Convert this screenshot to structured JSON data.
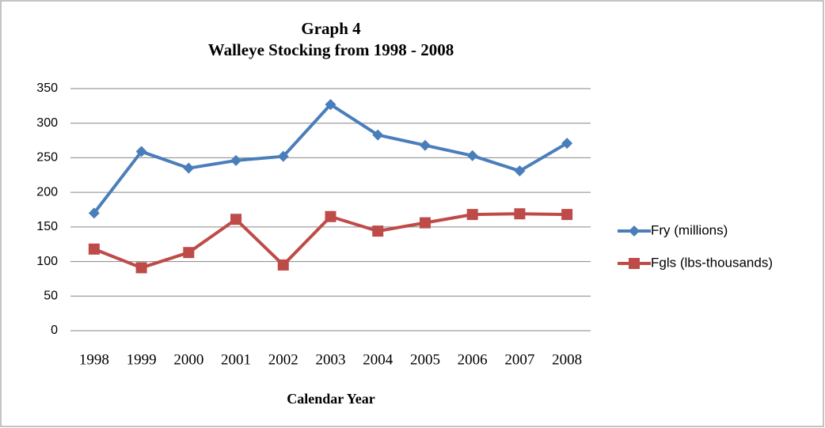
{
  "chart_data": {
    "type": "line",
    "title": "Graph 4",
    "subtitle": "Walleye Stocking from 1998 - 2008",
    "x_label": "Calendar Year",
    "categories": [
      "1998",
      "1999",
      "2000",
      "2001",
      "2002",
      "2003",
      "2004",
      "2005",
      "2006",
      "2007",
      "2008"
    ],
    "series": [
      {
        "name": "Fry (millions)",
        "color": "#4a7ebb",
        "marker": "diamond",
        "values": [
          170,
          259,
          235,
          246,
          252,
          327,
          283,
          268,
          253,
          231,
          271
        ]
      },
      {
        "name": "Fgls (lbs-thousands)",
        "color": "#be4b48",
        "marker": "square",
        "values": [
          118,
          91,
          113,
          161,
          95,
          165,
          144,
          156,
          168,
          169,
          168
        ]
      }
    ],
    "ylim": [
      0,
      350
    ],
    "yticks": [
      0,
      50,
      100,
      150,
      200,
      250,
      300,
      350
    ],
    "grid": true,
    "legend": "right"
  }
}
